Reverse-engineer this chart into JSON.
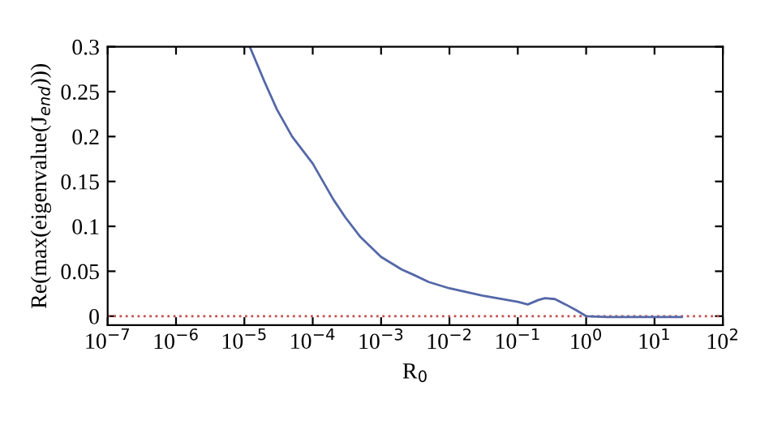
{
  "chart_data": {
    "type": "line",
    "xlabel": "R$_{0}$",
    "ylabel": "Re(max(eigenvalue(J$_{end}$)))",
    "log": "x",
    "x": [
      1.2e-05,
      2e-05,
      3e-05,
      5e-05,
      0.0001,
      0.0002,
      0.0003,
      0.0005,
      0.001,
      0.002,
      0.003,
      0.005,
      0.01,
      0.03,
      0.1,
      0.14,
      0.2,
      0.25,
      0.35,
      0.5,
      0.7,
      1,
      2,
      5,
      10,
      25
    ],
    "series": [
      {
        "color": "#5468a8",
        "values": [
          0.3,
          0.26,
          0.23,
          0.2,
          0.17,
          0.13,
          0.11,
          0.088,
          0.066,
          0.052,
          0.046,
          0.038,
          0.031,
          0.023,
          0.016,
          0.013,
          0.018,
          0.02,
          0.019,
          0.013,
          0.007,
          0.0,
          -0.001,
          -0.001,
          -0.001,
          -0.001
        ]
      }
    ],
    "xlim": [
      1e-07,
      100
    ],
    "ylim": [
      -0.01,
      0.3
    ],
    "xticks": [
      {
        "value": 1e-07,
        "label": "10$^{−7}$"
      },
      {
        "value": 1e-06,
        "label": "10$^{−6}$"
      },
      {
        "value": 1e-05,
        "label": "10$^{−5}$"
      },
      {
        "value": 0.0001,
        "label": "10$^{−4}$"
      },
      {
        "value": 0.001,
        "label": "10$^{−3}$"
      },
      {
        "value": 0.01,
        "label": "10$^{−2}$"
      },
      {
        "value": 0.1,
        "label": "10$^{−1}$"
      },
      {
        "value": 1,
        "label": "10$^{0}$"
      },
      {
        "value": 10,
        "label": "10$^{1}$"
      },
      {
        "value": 100,
        "label": "10$^{2}$"
      }
    ],
    "yticks": [
      0,
      0.05,
      0.1,
      0.15,
      0.2,
      0.25,
      0.3
    ],
    "ref_lines": [
      {
        "axis": "y",
        "value": 0,
        "color": "#c0504d",
        "line_style": "dotted"
      }
    ],
    "grid": false,
    "legend": false
  }
}
